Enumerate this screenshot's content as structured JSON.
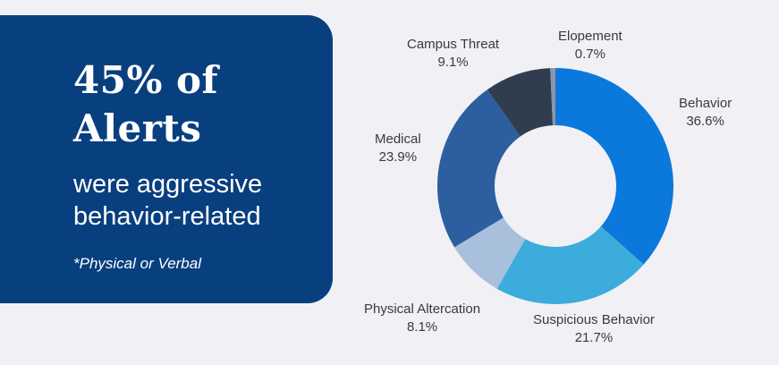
{
  "callout": {
    "headline_line1": "45% of",
    "headline_line2": "Alerts",
    "subline_line1": "were aggressive",
    "subline_line2": "behavior-related",
    "footnote": "*Physical or Verbal"
  },
  "colors": {
    "callout_bg": "#083f7e",
    "background": "#f1f0f4"
  },
  "chart_data": {
    "type": "pie",
    "donut": true,
    "categories": [
      "Behavior",
      "Suspicious Behavior",
      "Physical Altercation",
      "Medical",
      "Campus Threat",
      "Elopement"
    ],
    "values": [
      36.6,
      21.7,
      8.1,
      23.9,
      9.1,
      0.7
    ],
    "value_labels": [
      "36.6%",
      "21.7%",
      "8.1%",
      "23.9%",
      "9.1%",
      "0.7%"
    ],
    "colors": [
      "#0b78dc",
      "#3cacdc",
      "#a8c0dc",
      "#2d5e9f",
      "#303d4e",
      "#8e96a3"
    ]
  }
}
